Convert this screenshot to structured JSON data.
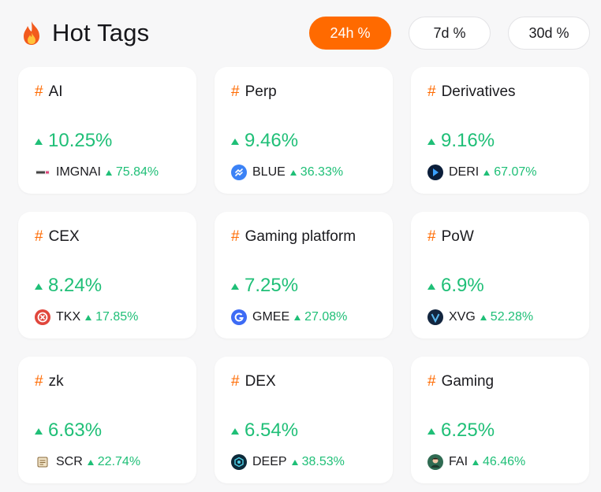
{
  "header": {
    "title": "Hot Tags",
    "icon": "fire-icon",
    "tabs": [
      {
        "label": "24h %",
        "active": true
      },
      {
        "label": "7d %",
        "active": false
      },
      {
        "label": "30d %",
        "active": false
      }
    ]
  },
  "colors": {
    "accent": "#ff6a00",
    "positive": "#1fbf77",
    "background": "#f7f7f8",
    "card": "#ffffff"
  },
  "cards": [
    {
      "hash": "#",
      "tag": "AI",
      "change": "10.25%",
      "coin": {
        "symbol": "IMGNAI",
        "change": "75.84%",
        "icon": "imgnai-icon"
      }
    },
    {
      "hash": "#",
      "tag": "Perp",
      "change": "9.46%",
      "coin": {
        "symbol": "BLUE",
        "change": "36.33%",
        "icon": "blue-icon"
      }
    },
    {
      "hash": "#",
      "tag": "Derivatives",
      "change": "9.16%",
      "coin": {
        "symbol": "DERI",
        "change": "67.07%",
        "icon": "deri-icon"
      }
    },
    {
      "hash": "#",
      "tag": "CEX",
      "change": "8.24%",
      "coin": {
        "symbol": "TKX",
        "change": "17.85%",
        "icon": "tkx-icon"
      }
    },
    {
      "hash": "#",
      "tag": "Gaming platform",
      "change": "7.25%",
      "coin": {
        "symbol": "GMEE",
        "change": "27.08%",
        "icon": "gmee-icon"
      }
    },
    {
      "hash": "#",
      "tag": "PoW",
      "change": "6.9%",
      "coin": {
        "symbol": "XVG",
        "change": "52.28%",
        "icon": "xvg-icon"
      }
    },
    {
      "hash": "#",
      "tag": "zk",
      "change": "6.63%",
      "coin": {
        "symbol": "SCR",
        "change": "22.74%",
        "icon": "scr-icon"
      }
    },
    {
      "hash": "#",
      "tag": "DEX",
      "change": "6.54%",
      "coin": {
        "symbol": "DEEP",
        "change": "38.53%",
        "icon": "deep-icon"
      }
    },
    {
      "hash": "#",
      "tag": "Gaming",
      "change": "6.25%",
      "coin": {
        "symbol": "FAI",
        "change": "46.46%",
        "icon": "fai-icon"
      }
    }
  ]
}
